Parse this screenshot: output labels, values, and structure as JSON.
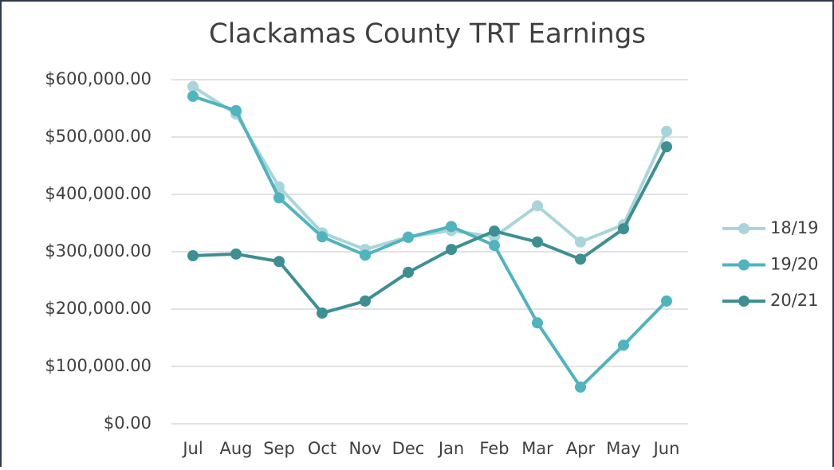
{
  "chart_data": {
    "type": "line",
    "title": "Clackamas County TRT Earnings",
    "categories": [
      "Jul",
      "Aug",
      "Sep",
      "Oct",
      "Nov",
      "Dec",
      "Jan",
      "Feb",
      "Mar",
      "Apr",
      "May",
      "Jun"
    ],
    "series": [
      {
        "name": "18/19",
        "color": "#a9d5da",
        "values": [
          588000,
          540000,
          413000,
          333000,
          304000,
          326000,
          337000,
          326000,
          380000,
          317000,
          347000,
          510000
        ]
      },
      {
        "name": "19/20",
        "color": "#4fb4be",
        "values": [
          571000,
          546000,
          394000,
          326000,
          294000,
          325000,
          344000,
          311000,
          176000,
          64000,
          137000,
          214000
        ]
      },
      {
        "name": "20/21",
        "color": "#3e8f93",
        "values": [
          293000,
          296000,
          283000,
          193000,
          214000,
          264000,
          304000,
          336000,
          317000,
          287000,
          340000,
          483000
        ]
      }
    ],
    "ylim": [
      0,
      600000
    ],
    "yticks": [
      {
        "value": 0,
        "label": "$0.00"
      },
      {
        "value": 100000,
        "label": "$100,000.00"
      },
      {
        "value": 200000,
        "label": "$200,000.00"
      },
      {
        "value": 300000,
        "label": "$300,000.00"
      },
      {
        "value": 400000,
        "label": "$400,000.00"
      },
      {
        "value": 500000,
        "label": "$500,000.00"
      },
      {
        "value": 600000,
        "label": "$600,000.00"
      }
    ],
    "grid": true,
    "legend": "right"
  }
}
